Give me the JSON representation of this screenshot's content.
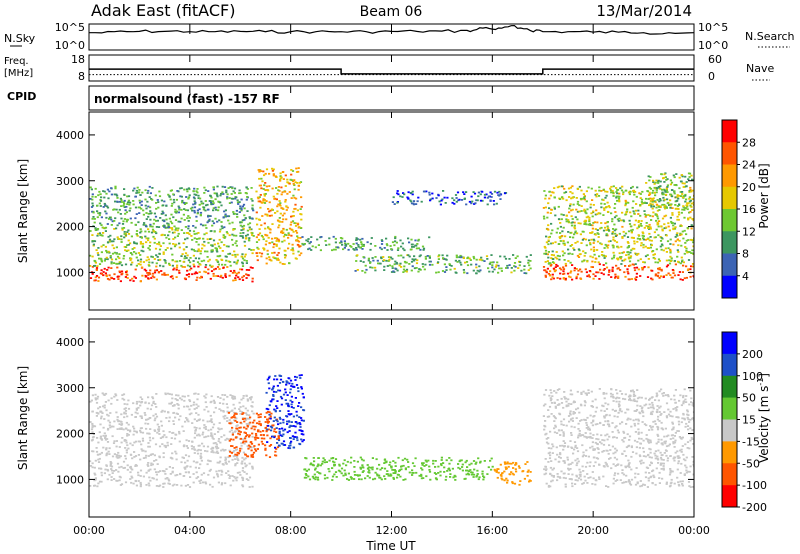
{
  "header": {
    "station": "Adak East (fitACF)",
    "beam": "Beam 06",
    "date": "13/Mar/2014"
  },
  "strips": {
    "nsky_label": "N.Sky",
    "nsky_ticks": [
      "10^5",
      "10^0"
    ],
    "nsearch_label": "N.Search",
    "nsearch_ticks": [
      "10^5",
      "10^0"
    ],
    "freq_label_1": "Freq.",
    "freq_label_2": "[MHz]",
    "freq_ticks": [
      "18",
      "8"
    ],
    "nave_label": "Nave",
    "nave_ticks": [
      "60",
      "0"
    ],
    "cpid_label": "CPID",
    "cpid_text": "normalsound (fast) -157 RF"
  },
  "axes": {
    "ylabel": "Slant Range [km]",
    "yticks": [
      "4000",
      "3000",
      "2000",
      "1000"
    ],
    "xlabel": "Time UT",
    "xticks": [
      "00:00",
      "04:00",
      "08:00",
      "12:00",
      "16:00",
      "20:00",
      "00:00"
    ]
  },
  "colorbars": {
    "power": {
      "label": "Power [dB]",
      "ticks": [
        "28",
        "24",
        "20",
        "16",
        "12",
        "8",
        "4"
      ],
      "colors": [
        "#ff0000",
        "#ff5500",
        "#ff9900",
        "#e6c800",
        "#6ec832",
        "#3c9660",
        "#3c64b4",
        "#0000ff"
      ]
    },
    "velocity": {
      "label": "Velocity [m s",
      "label_sup": "-1",
      "label_end": "]",
      "ticks": [
        "200",
        "100",
        "50",
        "15",
        "-15",
        "-50",
        "-100",
        "-200"
      ],
      "colors": [
        "#0000ff",
        "#1e50c8",
        "#228b22",
        "#64c832",
        "#c8c8c8",
        "#ff9900",
        "#ff5500",
        "#ff0000"
      ]
    }
  },
  "chart_data": [
    {
      "type": "line",
      "title": "N.Sky / N.Search",
      "x_unit": "hours UT",
      "xlim": [
        0,
        24
      ],
      "series": [
        {
          "name": "N.Sky",
          "scale": "log",
          "ylim": [
            1,
            100000
          ],
          "x": [
            0,
            1,
            2,
            3,
            4,
            5,
            6,
            7,
            8,
            9,
            10,
            11,
            12,
            13,
            14,
            15,
            15.5,
            16,
            16.5,
            17,
            17.5,
            18,
            19,
            20,
            21,
            22,
            23,
            24
          ],
          "y": [
            3000,
            5000,
            6000,
            6000,
            5000,
            5000,
            6000,
            5000,
            5000,
            5000,
            5000,
            5000,
            6000,
            6000,
            7000,
            10000,
            40000,
            20000,
            60000,
            30000,
            10000,
            5000,
            5000,
            4000,
            4000,
            3000,
            3000,
            3000
          ]
        }
      ]
    },
    {
      "type": "line",
      "title": "Freq. / Nave",
      "x_unit": "hours UT",
      "xlim": [
        0,
        24
      ],
      "series": [
        {
          "name": "Freq.",
          "ylim": [
            8,
            18
          ],
          "x": [
            0,
            10,
            10,
            18,
            18,
            24
          ],
          "y": [
            12.5,
            12.5,
            10.3,
            10.3,
            12.5,
            12.5
          ]
        },
        {
          "name": "Nave",
          "ylim": [
            0,
            60
          ],
          "x": [
            0,
            24
          ],
          "y": [
            12,
            12
          ]
        }
      ]
    },
    {
      "type": "heatmap",
      "title": "Power [dB]",
      "x_unit": "hours UT",
      "y_unit": "km",
      "xlim": [
        0,
        24
      ],
      "ylim": [
        180,
        4500
      ],
      "features": [
        {
          "t": [
            0,
            6.5
          ],
          "r": [
            820,
            1150
          ],
          "value_db": 27
        },
        {
          "t": [
            0,
            6.5
          ],
          "r": [
            1150,
            2000
          ],
          "value_db": 14
        },
        {
          "t": [
            0,
            6.5
          ],
          "r": [
            2000,
            2900
          ],
          "value_db": 11
        },
        {
          "t": [
            6.6,
            8.4
          ],
          "r": [
            1200,
            3300
          ],
          "value_db": 20
        },
        {
          "t": [
            8.4,
            13.5
          ],
          "r": [
            1500,
            1800
          ],
          "value_db": 11
        },
        {
          "t": [
            10.5,
            17.5
          ],
          "r": [
            1000,
            1400
          ],
          "value_db": 12
        },
        {
          "t": [
            12,
            16.5
          ],
          "r": [
            2500,
            2800
          ],
          "value_db": 6
        },
        {
          "t": [
            18,
            24
          ],
          "r": [
            850,
            1200
          ],
          "value_db": 27
        },
        {
          "t": [
            18,
            24
          ],
          "r": [
            1200,
            2900
          ],
          "value_db": 16
        },
        {
          "t": [
            22,
            24
          ],
          "r": [
            2400,
            3200
          ],
          "value_db": 14
        }
      ]
    },
    {
      "type": "heatmap",
      "title": "Velocity [m s-1]",
      "x_unit": "hours UT",
      "y_unit": "km",
      "xlim": [
        0,
        24
      ],
      "ylim": [
        180,
        4500
      ],
      "features": [
        {
          "t": [
            0,
            6.5
          ],
          "r": [
            850,
            2900
          ],
          "value_ms": 0
        },
        {
          "t": [
            5.5,
            7.5
          ],
          "r": [
            1500,
            2500
          ],
          "value_ms": -60
        },
        {
          "t": [
            7,
            8.5
          ],
          "r": [
            1700,
            3300
          ],
          "value_ms": 200
        },
        {
          "t": [
            8.5,
            16
          ],
          "r": [
            1000,
            1500
          ],
          "value_ms": 40
        },
        {
          "t": [
            16,
            17.5
          ],
          "r": [
            900,
            1400
          ],
          "value_ms": -40
        },
        {
          "t": [
            18,
            24
          ],
          "r": [
            850,
            3000
          ],
          "value_ms": 0
        }
      ]
    }
  ]
}
